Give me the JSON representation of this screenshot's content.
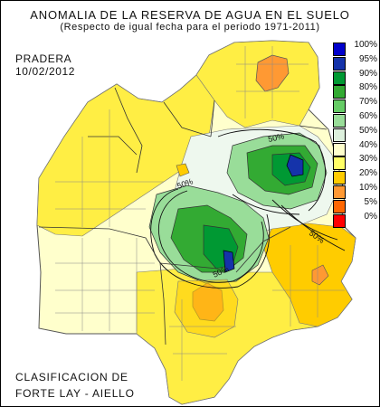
{
  "header": {
    "title": "ANOMALIA DE LA RESERVA DE AGUA EN EL SUELO",
    "subtitle": "(Respecto de igual fecha para el periodo 1971-2011)"
  },
  "map_info": {
    "region_label": "PRADERA",
    "date_label": "10/02/2012",
    "classification_line1": "CLASIFICACION DE",
    "classification_line2": "FORTE LAY - AIELLO"
  },
  "contour_labels": [
    "50%",
    "50%",
    "50%",
    "50%"
  ],
  "legend": {
    "entries": [
      {
        "label": "100%",
        "color": "#0000cc"
      },
      {
        "label": "95%",
        "color": "#1533aa"
      },
      {
        "label": "90%",
        "color": "#009933"
      },
      {
        "label": "80%",
        "color": "#33aa33"
      },
      {
        "label": "70%",
        "color": "#66cc66"
      },
      {
        "label": "60%",
        "color": "#99dd99"
      },
      {
        "label": "50%",
        "color": "#ddf0dd"
      },
      {
        "label": "40%",
        "color": "#ffffcc"
      },
      {
        "label": "30%",
        "color": "#ffff66"
      },
      {
        "label": "20%",
        "color": "#ffcc00"
      },
      {
        "label": "10%",
        "color": "#ff9933"
      },
      {
        "label": "5%",
        "color": "#ff6600"
      },
      {
        "label": "0%",
        "color": "#ff0000"
      }
    ]
  },
  "colors": {
    "light_yellow": "#ffffcc",
    "yellow": "#ffee44",
    "gold": "#ffcc00",
    "orange": "#ff9933",
    "green_dark": "#009933",
    "green_mid": "#33aa33",
    "green_light": "#99dd99",
    "blue": "#1533aa"
  }
}
